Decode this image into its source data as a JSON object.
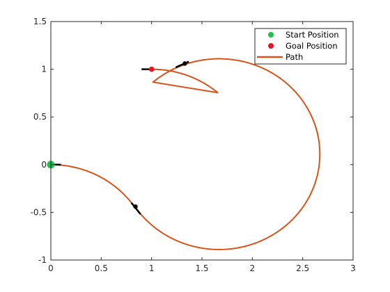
{
  "chart_data": {
    "type": "line",
    "title": "",
    "xlabel": "",
    "ylabel": "",
    "xlim": [
      0,
      3
    ],
    "ylim": [
      -1,
      1.5
    ],
    "x_ticks": [
      0,
      0.5,
      1,
      1.5,
      2,
      2.5,
      3
    ],
    "x_tick_labels": [
      "0",
      "0.5",
      "1",
      "1.5",
      "2",
      "2.5",
      "3"
    ],
    "y_ticks": [
      -1,
      -0.5,
      0,
      0.5,
      1,
      1.5
    ],
    "y_tick_labels": [
      "-1",
      "-0.5",
      "0",
      "0.5",
      "1",
      "1.5"
    ],
    "grid": false,
    "legend_position": "top-right",
    "path": {
      "segments": [
        {
          "kind": "arc",
          "center": [
            0,
            -1.0
          ],
          "radius": 1.0,
          "theta_start_deg": 90,
          "theta_end_deg": 33
        },
        {
          "kind": "arc",
          "center": [
            1.67,
            0.11
          ],
          "radius": 1.0,
          "theta_start_deg": -147,
          "theta_end_deg": 131
        },
        {
          "kind": "arc",
          "center": [
            1.0,
            0.0
          ],
          "radius": 1.0,
          "theta_start_deg": 49,
          "theta_end_deg": 90
        }
      ],
      "color": "#d95319"
    },
    "start": {
      "x": 0,
      "y": 0,
      "color": "#1fbf4a"
    },
    "goal": {
      "x": 1.0,
      "y": 1.0,
      "color": "#e8171f"
    },
    "waypoints": [
      {
        "x": 0.84,
        "y": -0.44
      },
      {
        "x": 1.33,
        "y": 1.06
      }
    ],
    "heading_segments": [
      {
        "x1": 0.0,
        "y1": 0.0,
        "x2": 0.1,
        "y2": 0.0
      },
      {
        "x1": 0.8,
        "y1": -0.4,
        "x2": 0.89,
        "y2": -0.52
      },
      {
        "x1": 1.24,
        "y1": 1.02,
        "x2": 1.37,
        "y2": 1.08
      },
      {
        "x1": 0.9,
        "y1": 1.0,
        "x2": 1.0,
        "y2": 1.0
      }
    ],
    "legend": [
      {
        "label": "Start Position",
        "kind": "marker",
        "color": "#1fbf4a"
      },
      {
        "label": "Goal Position",
        "kind": "marker",
        "color": "#e8171f"
      },
      {
        "label": "Path",
        "kind": "line",
        "color": "#d95319"
      }
    ]
  }
}
